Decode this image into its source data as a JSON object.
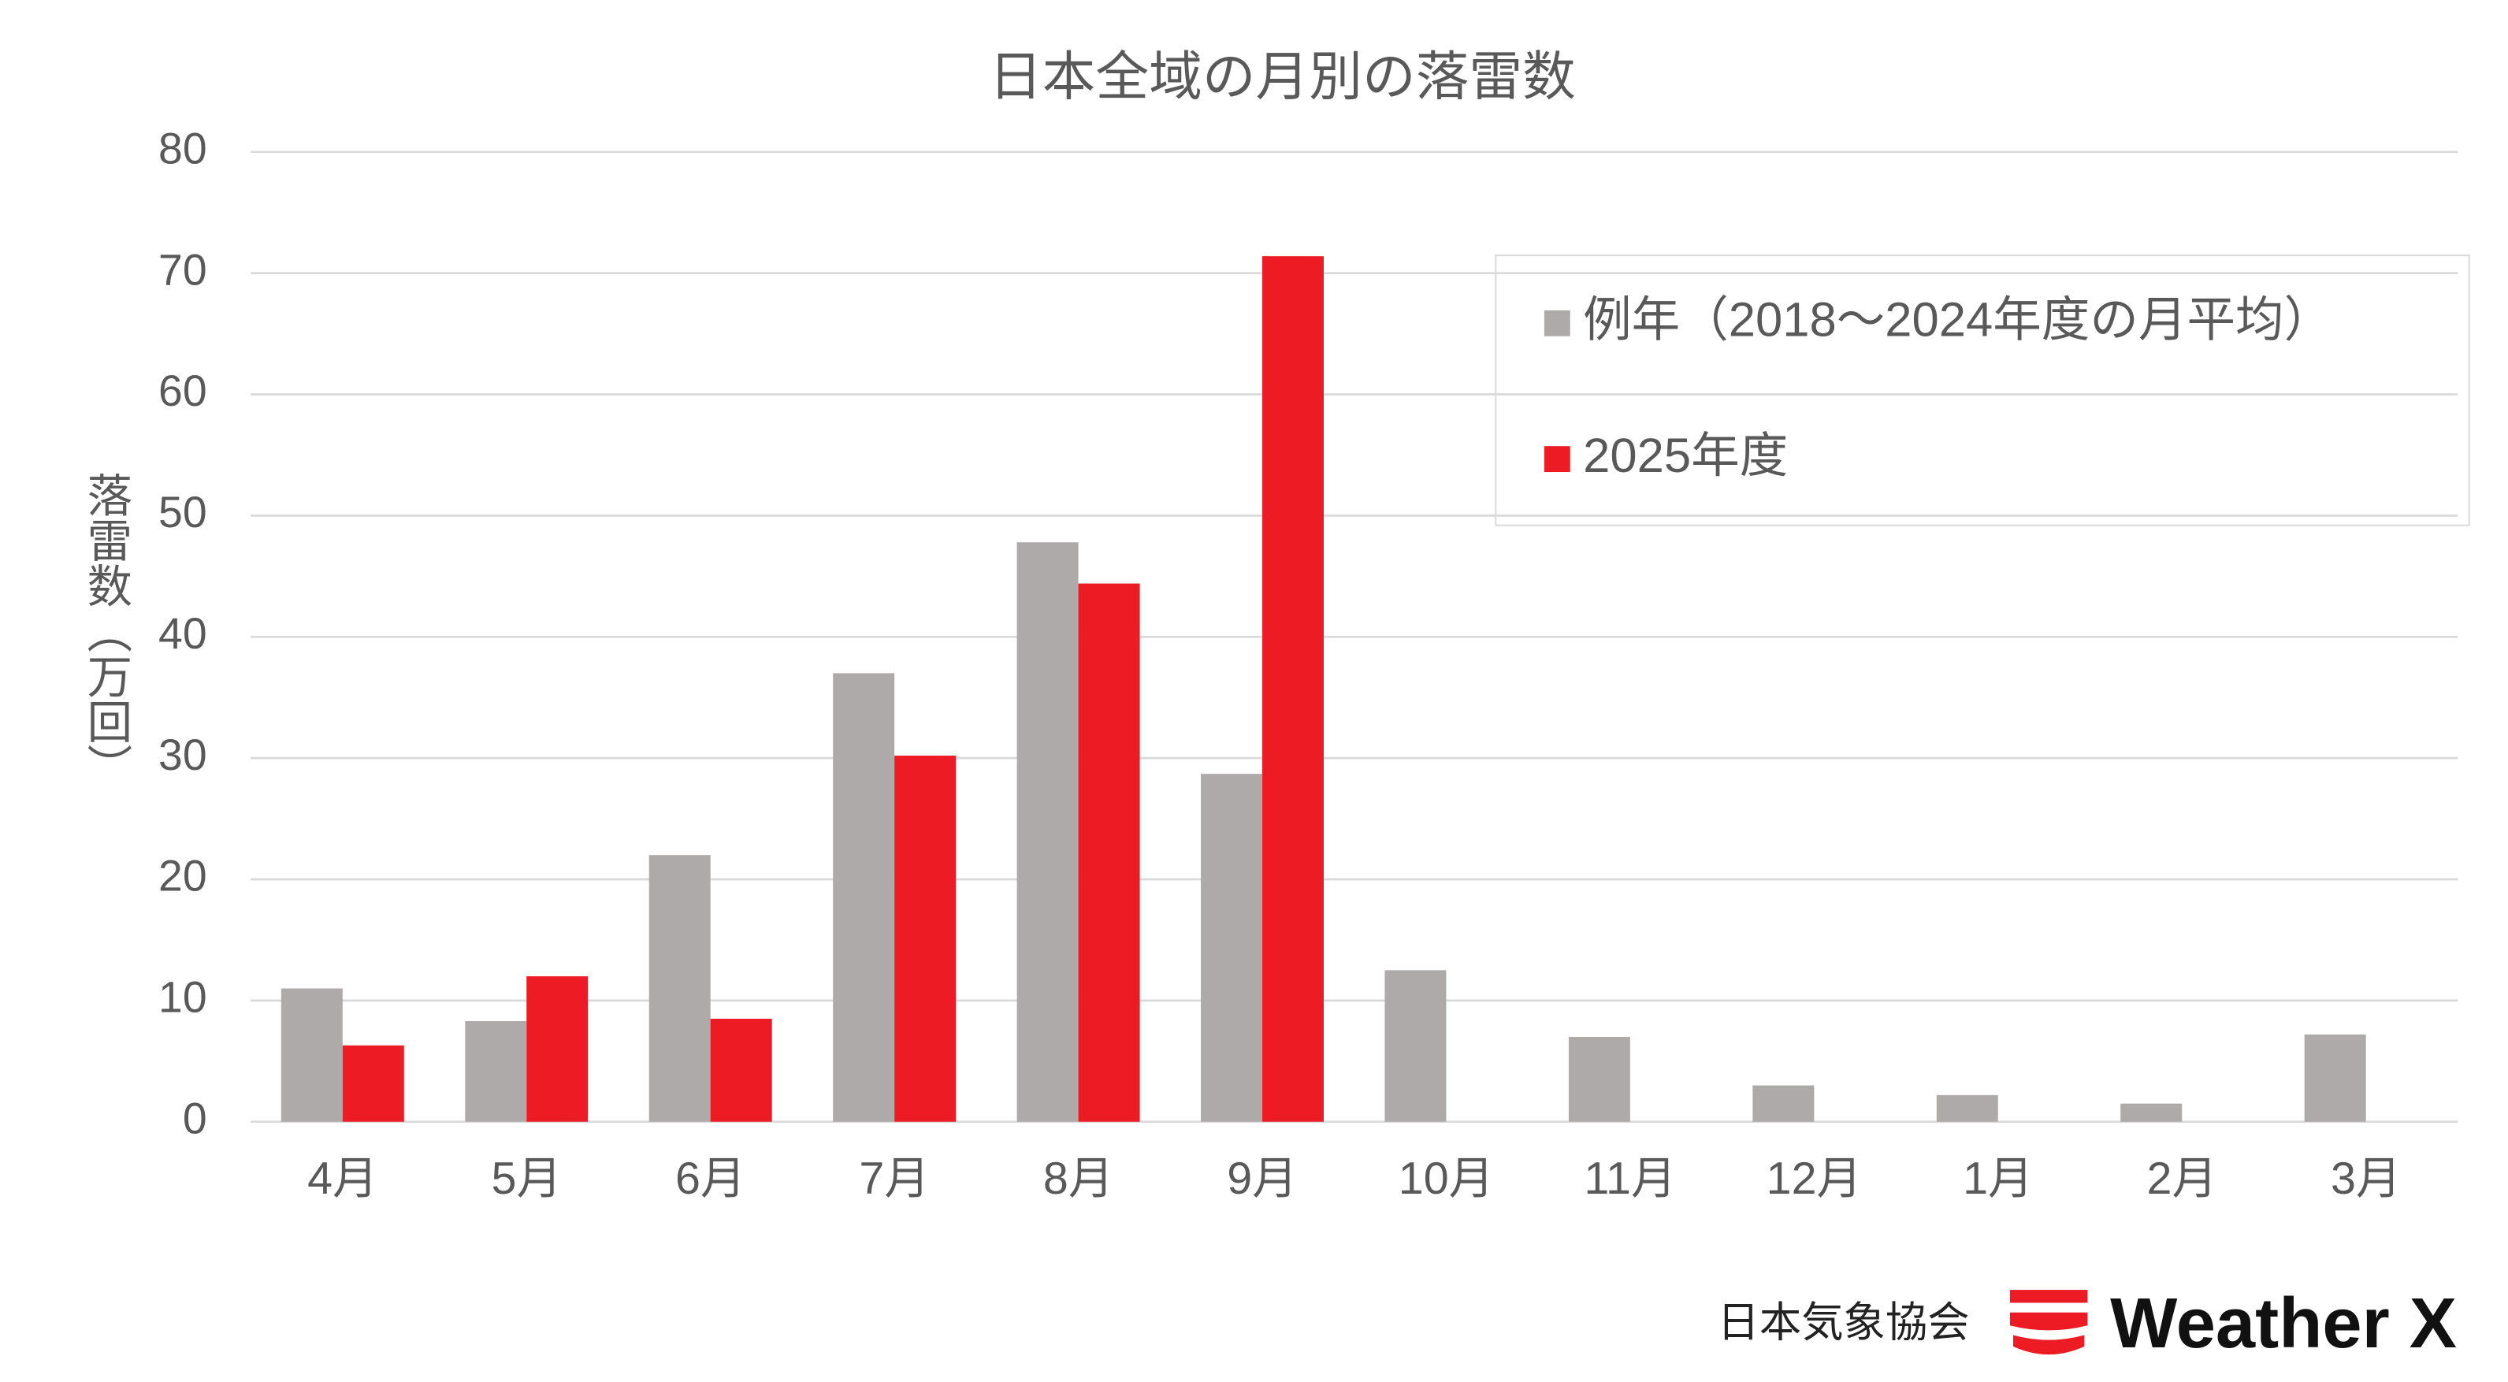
{
  "chart_data": {
    "type": "bar",
    "title": "日本全域の月別の落雷数",
    "y_label": "落雷数（万回）",
    "categories": [
      "4月",
      "5月",
      "6月",
      "7月",
      "8月",
      "9月",
      "10月",
      "11月",
      "12月",
      "1月",
      "2月",
      "3月"
    ],
    "series": [
      {
        "name": "例年（2018～2024年度の月平均）",
        "color": "#aeaaaa",
        "values": [
          11,
          8.3,
          22,
          37,
          47.8,
          28.7,
          12.5,
          7,
          3,
          2.2,
          1.5,
          7.2
        ]
      },
      {
        "name": "2025年度",
        "color": "#ed1c24",
        "values": [
          6.3,
          12,
          8.5,
          30.2,
          44.4,
          71.4,
          null,
          null,
          null,
          null,
          null,
          null
        ]
      }
    ],
    "ylim": [
      0,
      80
    ],
    "yticks": [
      0,
      10,
      20,
      30,
      40,
      50,
      60,
      70,
      80
    ],
    "grid": true,
    "legend": "top-right"
  },
  "branding": {
    "organization": "日本気象協会",
    "product": "Weather X"
  }
}
